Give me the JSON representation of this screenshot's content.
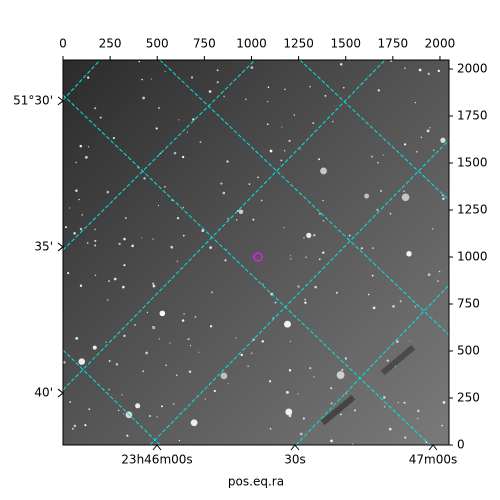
{
  "chart_data": {
    "type": "image",
    "xlabel": "pos.eq.ra",
    "xlim": [
      0,
      2048
    ],
    "xticks": [
      0,
      250,
      500,
      750,
      1000,
      1250,
      1500,
      1750,
      2000
    ],
    "ylim": [
      0,
      2048
    ],
    "yticks": [
      0,
      250,
      500,
      750,
      1000,
      1250,
      1500,
      1750,
      2000
    ],
    "ra_lim": [
      2739.57,
      2823.48
    ],
    "ra_ticks": [
      {
        "value": 2760,
        "label": "23h46m00s"
      },
      {
        "value": 2790,
        "label": "30s"
      },
      {
        "value": 2820,
        "label": "47m00s"
      }
    ],
    "dec_lim": [
      51.6963,
      51.4767
    ],
    "dec_ticks": [
      {
        "value": 51.5,
        "label": "51°30'"
      },
      {
        "value": 51.58333,
        "label": "35'"
      },
      {
        "value": 51.66667,
        "label": "40'"
      }
    ],
    "grid_color": "#00e5e5"
  }
}
